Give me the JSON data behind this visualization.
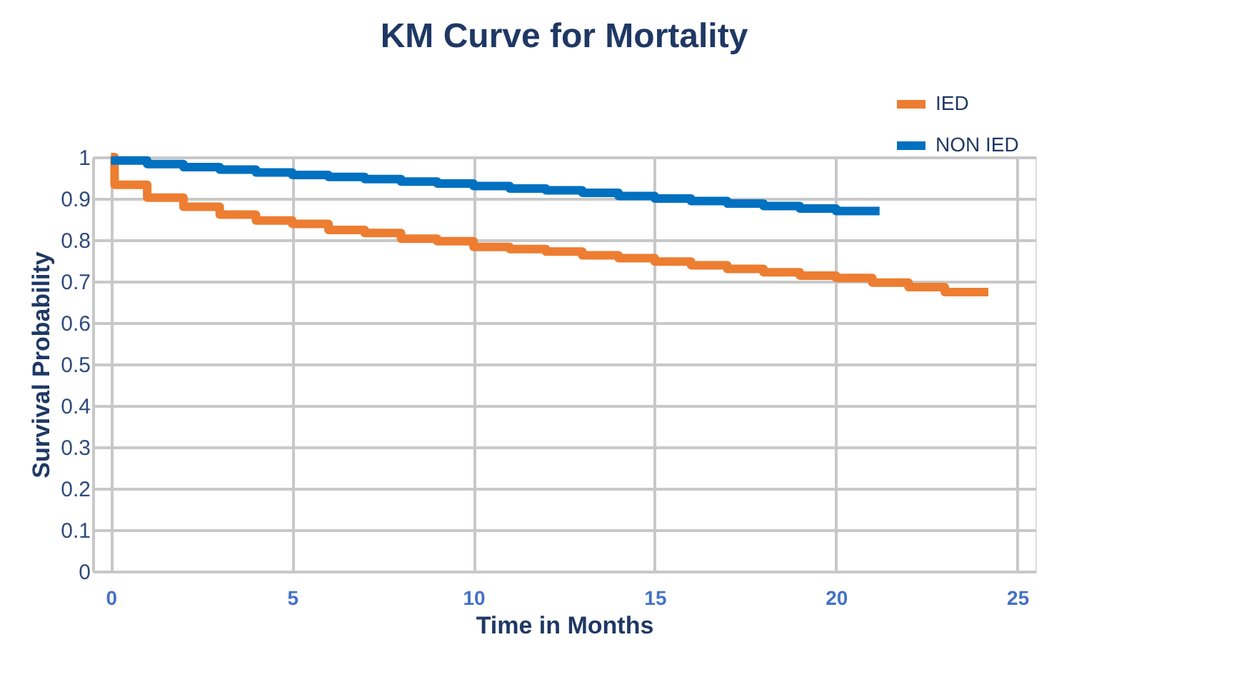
{
  "chart_data": {
    "type": "step",
    "title": "KM Curve for Mortality",
    "xlabel": "Time in Months",
    "ylabel": "Survival Probability",
    "xlim": [
      -0.5,
      25.5
    ],
    "xticks": [
      0,
      5,
      10,
      15,
      20,
      25
    ],
    "ylim": [
      0,
      1
    ],
    "yticks": [
      0,
      0.1,
      0.2,
      0.3,
      0.4,
      0.5,
      0.6,
      0.7,
      0.8,
      0.9,
      1
    ],
    "grid": true,
    "legend": "top right",
    "marker": "none",
    "line_style": "solid",
    "series": [
      {
        "name": "IED",
        "color": "#ed7d31",
        "x": [
          0,
          0.1,
          1,
          2,
          3,
          4,
          5,
          6,
          7,
          8,
          9,
          10,
          11,
          12,
          13,
          14,
          15,
          16,
          17,
          18,
          19,
          20,
          21,
          22,
          23,
          24.2
        ],
        "values": [
          1,
          0.933,
          0.902,
          0.88,
          0.861,
          0.847,
          0.839,
          0.824,
          0.817,
          0.803,
          0.797,
          0.783,
          0.778,
          0.772,
          0.763,
          0.756,
          0.748,
          0.739,
          0.73,
          0.722,
          0.714,
          0.708,
          0.697,
          0.686,
          0.674,
          0.674
        ]
      },
      {
        "name": "NON IED",
        "color": "#0070c0",
        "x": [
          0,
          1,
          2,
          3,
          4,
          5,
          6,
          7,
          8,
          9,
          10,
          11,
          12,
          13,
          14,
          15,
          16,
          17,
          18,
          19,
          20,
          21.2
        ],
        "values": [
          0.992,
          0.983,
          0.976,
          0.97,
          0.963,
          0.957,
          0.952,
          0.947,
          0.941,
          0.936,
          0.93,
          0.924,
          0.92,
          0.914,
          0.906,
          0.9,
          0.894,
          0.888,
          0.882,
          0.876,
          0.87,
          0.87
        ]
      }
    ]
  }
}
